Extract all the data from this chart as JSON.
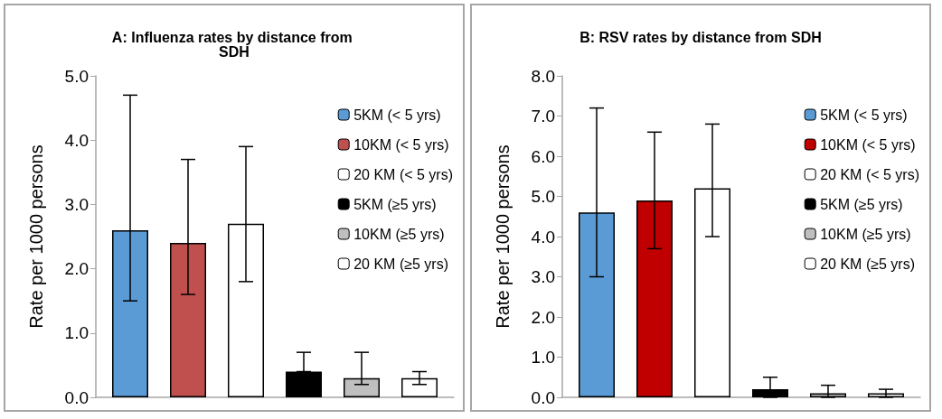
{
  "chart_data": [
    {
      "type": "bar",
      "title": "A: Influenza rates by distance from SDH",
      "ylabel": "Rate per 1000 persons",
      "categories": [
        null
      ],
      "ylim": [
        0,
        5
      ],
      "yticks": [
        {
          "value": 0,
          "label": "0.0"
        },
        {
          "value": 1,
          "label": "1.0"
        },
        {
          "value": 2,
          "label": "2.0"
        },
        {
          "value": 3,
          "label": "3.0"
        },
        {
          "value": 4,
          "label": "4.0"
        },
        {
          "value": 5,
          "label": "5.0"
        }
      ],
      "grid": false,
      "legend": "top right",
      "series": [
        {
          "name": "5KM (< 5 yrs)",
          "color": "#5b9bd5",
          "values": [
            2.6
          ],
          "errors": [
            [
              1.5,
              4.7
            ]
          ]
        },
        {
          "name": "10KM (< 5 yrs)",
          "color": "#c0504d",
          "values": [
            2.4
          ],
          "errors": [
            [
              1.6,
              3.7
            ]
          ]
        },
        {
          "name": "20 KM (< 5 yrs)",
          "color": "#ffffff",
          "values": [
            2.7
          ],
          "errors": [
            [
              1.8,
              3.9
            ]
          ]
        },
        {
          "name": "5KM (≥5 yrs)",
          "color": "#000000",
          "values": [
            0.4
          ],
          "errors": [
            [
              0.4,
              0.7
            ]
          ]
        },
        {
          "name": "10KM (≥5 yrs)",
          "color": "#bfbfbf",
          "values": [
            0.3
          ],
          "errors": [
            [
              0.2,
              0.7
            ]
          ]
        },
        {
          "name": "20 KM (≥5 yrs)",
          "color": "#ffffff",
          "values": [
            0.3
          ],
          "errors": [
            [
              0.2,
              0.4
            ]
          ]
        }
      ]
    },
    {
      "type": "bar",
      "title": "B: RSV rates by distance from SDH",
      "ylabel": "Rate per 1000 persons",
      "categories": [
        null
      ],
      "ylim": [
        0,
        8
      ],
      "yticks": [
        {
          "value": 0,
          "label": "0.0"
        },
        {
          "value": 1,
          "label": "1.0"
        },
        {
          "value": 2,
          "label": "2.0"
        },
        {
          "value": 3,
          "label": "3.0"
        },
        {
          "value": 4,
          "label": "4.0"
        },
        {
          "value": 5,
          "label": "5.0"
        },
        {
          "value": 6,
          "label": "6.0"
        },
        {
          "value": 7,
          "label": "7.0"
        },
        {
          "value": 8,
          "label": "8.0"
        }
      ],
      "grid": false,
      "legend": "top right",
      "series": [
        {
          "name": "5KM (< 5 yrs)",
          "color": "#5b9bd5",
          "values": [
            4.6
          ],
          "errors": [
            [
              3.0,
              7.2
            ]
          ]
        },
        {
          "name": "10KM (< 5 yrs)",
          "color": "#c00000",
          "values": [
            4.9
          ],
          "errors": [
            [
              3.7,
              6.6
            ]
          ]
        },
        {
          "name": "20 KM (< 5 yrs)",
          "color": "#ffffff",
          "values": [
            5.2
          ],
          "errors": [
            [
              4.0,
              6.8
            ]
          ]
        },
        {
          "name": "5KM (≥5 yrs)",
          "color": "#000000",
          "values": [
            0.2
          ],
          "errors": [
            [
              0,
              0.5
            ]
          ]
        },
        {
          "name": "10KM (≥5 yrs)",
          "color": "#bfbfbf",
          "values": [
            0.1
          ],
          "errors": [
            [
              0,
              0.3
            ]
          ]
        },
        {
          "name": "20 KM (≥5 yrs)",
          "color": "#ffffff",
          "values": [
            0.1
          ],
          "errors": [
            [
              0,
              0.2
            ]
          ]
        }
      ]
    }
  ]
}
